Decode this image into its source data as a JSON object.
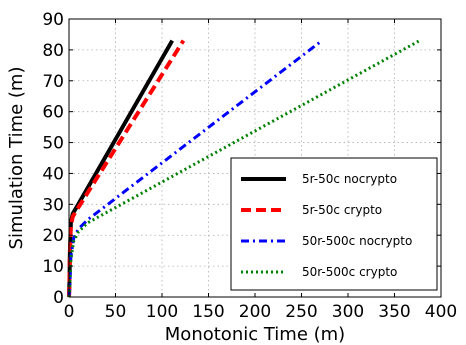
{
  "chart_data": {
    "type": "line",
    "title": "",
    "xlabel": "Monotonic Time (m)",
    "ylabel": "Simulation Time (m)",
    "xlim": [
      0,
      400
    ],
    "ylim": [
      0,
      90
    ],
    "xticks": [
      0,
      50,
      100,
      150,
      200,
      250,
      300,
      350,
      400
    ],
    "yticks": [
      0,
      10,
      20,
      30,
      40,
      50,
      60,
      70,
      80,
      90
    ],
    "grid": true,
    "legend_position": "lower-right",
    "series": [
      {
        "name": "5r-50c nocrypto",
        "color": "#000000",
        "style": "solid",
        "x": [
          0,
          0.5,
          1,
          2,
          4,
          8,
          111
        ],
        "y": [
          0,
          5,
          15,
          24,
          27,
          29,
          83
        ]
      },
      {
        "name": "5r-50c crypto",
        "color": "#ff0000",
        "style": "dashed",
        "x": [
          0,
          0.5,
          1,
          2,
          4,
          8,
          123
        ],
        "y": [
          0,
          5,
          15,
          23,
          26,
          28,
          83
        ]
      },
      {
        "name": "50r-500c nocrypto",
        "color": "#0000ff",
        "style": "dashdot",
        "x": [
          0,
          1,
          2,
          5,
          10,
          20,
          272
        ],
        "y": [
          0,
          5,
          13,
          19,
          22,
          25,
          83
        ]
      },
      {
        "name": "50r-500c crypto",
        "color": "#008000",
        "style": "dotted",
        "x": [
          0,
          1,
          2,
          5,
          10,
          20,
          377
        ],
        "y": [
          0,
          5,
          12,
          18,
          21,
          24,
          83
        ]
      }
    ]
  }
}
